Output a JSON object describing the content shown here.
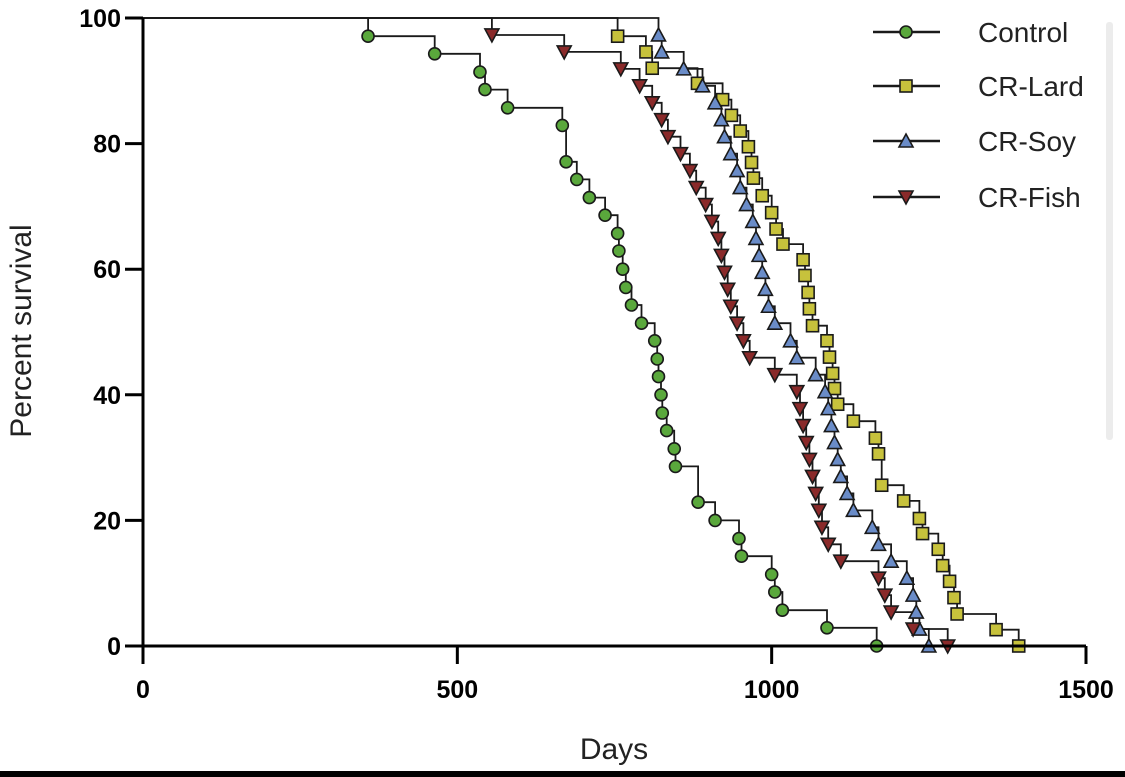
{
  "chart_data": {
    "type": "line",
    "step": true,
    "title": "",
    "xlabel": "Days",
    "ylabel": "Percent survival",
    "xlim": [
      0,
      1500
    ],
    "ylim": [
      0,
      100
    ],
    "xticks": [
      0,
      500,
      1000,
      1500
    ],
    "yticks": [
      0,
      20,
      40,
      60,
      80,
      100
    ],
    "legend_position": "top-right",
    "series": [
      {
        "name": "Control",
        "marker": "circle",
        "color": "#5aa83c",
        "points": [
          [
            0,
            100
          ],
          [
            358,
            97.1
          ],
          [
            464,
            94.3
          ],
          [
            536,
            91.4
          ],
          [
            544,
            88.6
          ],
          [
            580,
            85.7
          ],
          [
            667,
            82.9
          ],
          [
            673,
            77.1
          ],
          [
            690,
            74.3
          ],
          [
            710,
            71.4
          ],
          [
            735,
            68.6
          ],
          [
            755,
            65.7
          ],
          [
            757,
            62.9
          ],
          [
            763,
            60
          ],
          [
            768,
            57.1
          ],
          [
            777,
            54.3
          ],
          [
            793,
            51.4
          ],
          [
            814,
            48.6
          ],
          [
            818,
            45.7
          ],
          [
            820,
            42.9
          ],
          [
            824,
            40
          ],
          [
            826,
            37.1
          ],
          [
            833,
            34.3
          ],
          [
            845,
            31.4
          ],
          [
            847,
            28.6
          ],
          [
            883,
            22.9
          ],
          [
            910,
            20
          ],
          [
            948,
            17.1
          ],
          [
            952,
            14.3
          ],
          [
            1000,
            11.4
          ],
          [
            1005,
            8.6
          ],
          [
            1017,
            5.7
          ],
          [
            1088,
            2.9
          ],
          [
            1167,
            0
          ]
        ]
      },
      {
        "name": "CR-Lard",
        "marker": "square",
        "color": "#c7c23c",
        "points": [
          [
            0,
            100
          ],
          [
            755,
            97.1
          ],
          [
            800,
            94.6
          ],
          [
            810,
            92
          ],
          [
            882,
            89.6
          ],
          [
            922,
            87
          ],
          [
            936,
            84.5
          ],
          [
            950,
            82
          ],
          [
            963,
            79.5
          ],
          [
            968,
            77
          ],
          [
            971,
            74.5
          ],
          [
            985,
            71.7
          ],
          [
            1000,
            69
          ],
          [
            1007,
            66.4
          ],
          [
            1018,
            64
          ],
          [
            1050,
            61.5
          ],
          [
            1053,
            59
          ],
          [
            1058,
            56.3
          ],
          [
            1060,
            53.7
          ],
          [
            1065,
            51
          ],
          [
            1088,
            48.6
          ],
          [
            1092,
            46
          ],
          [
            1097,
            43.4
          ],
          [
            1100,
            41
          ],
          [
            1105,
            38.5
          ],
          [
            1130,
            35.8
          ],
          [
            1165,
            33.1
          ],
          [
            1170,
            30.6
          ],
          [
            1175,
            25.6
          ],
          [
            1210,
            23.1
          ],
          [
            1235,
            20.3
          ],
          [
            1240,
            17.9
          ],
          [
            1265,
            15.4
          ],
          [
            1272,
            12.8
          ],
          [
            1283,
            10.3
          ],
          [
            1290,
            7.7
          ],
          [
            1295,
            5.1
          ],
          [
            1357,
            2.6
          ],
          [
            1393,
            0
          ]
        ]
      },
      {
        "name": "CR-Soy",
        "marker": "triangle-up",
        "color": "#6a8cc8",
        "points": [
          [
            0,
            100
          ],
          [
            820,
            97.3
          ],
          [
            825,
            94.6
          ],
          [
            860,
            91.9
          ],
          [
            890,
            89.2
          ],
          [
            910,
            86.5
          ],
          [
            920,
            83.8
          ],
          [
            925,
            81.1
          ],
          [
            935,
            78.4
          ],
          [
            945,
            75.7
          ],
          [
            950,
            73
          ],
          [
            960,
            70.3
          ],
          [
            970,
            67.6
          ],
          [
            975,
            64.9
          ],
          [
            980,
            62.2
          ],
          [
            985,
            59.5
          ],
          [
            990,
            56.8
          ],
          [
            995,
            54.1
          ],
          [
            1005,
            51.4
          ],
          [
            1030,
            48.6
          ],
          [
            1040,
            45.9
          ],
          [
            1070,
            43.2
          ],
          [
            1085,
            40.5
          ],
          [
            1090,
            37.8
          ],
          [
            1095,
            35.1
          ],
          [
            1100,
            32.4
          ],
          [
            1105,
            29.7
          ],
          [
            1110,
            27
          ],
          [
            1120,
            24.3
          ],
          [
            1130,
            21.6
          ],
          [
            1160,
            18.9
          ],
          [
            1170,
            16.2
          ],
          [
            1190,
            13.5
          ],
          [
            1215,
            10.8
          ],
          [
            1225,
            8.1
          ],
          [
            1230,
            5.4
          ],
          [
            1235,
            2.7
          ],
          [
            1250,
            0
          ]
        ]
      },
      {
        "name": "CR-Fish",
        "marker": "triangle-down",
        "color": "#8a2a2a",
        "points": [
          [
            0,
            100
          ],
          [
            555,
            97.3
          ],
          [
            670,
            94.6
          ],
          [
            760,
            91.9
          ],
          [
            790,
            89.2
          ],
          [
            810,
            86.5
          ],
          [
            825,
            83.8
          ],
          [
            835,
            81.1
          ],
          [
            855,
            78.4
          ],
          [
            870,
            75.7
          ],
          [
            880,
            73
          ],
          [
            895,
            70.3
          ],
          [
            905,
            67.6
          ],
          [
            915,
            64.9
          ],
          [
            920,
            62.2
          ],
          [
            925,
            59.5
          ],
          [
            930,
            56.8
          ],
          [
            935,
            54.1
          ],
          [
            945,
            51.4
          ],
          [
            955,
            48.6
          ],
          [
            965,
            45.9
          ],
          [
            1005,
            43.2
          ],
          [
            1040,
            40.5
          ],
          [
            1045,
            37.8
          ],
          [
            1050,
            35.1
          ],
          [
            1055,
            32.4
          ],
          [
            1060,
            29.7
          ],
          [
            1065,
            27
          ],
          [
            1070,
            24.3
          ],
          [
            1075,
            21.6
          ],
          [
            1080,
            18.9
          ],
          [
            1090,
            16.2
          ],
          [
            1110,
            13.5
          ],
          [
            1170,
            10.8
          ],
          [
            1180,
            8.1
          ],
          [
            1190,
            5.4
          ],
          [
            1225,
            2.7
          ],
          [
            1280,
            0
          ]
        ]
      }
    ]
  }
}
